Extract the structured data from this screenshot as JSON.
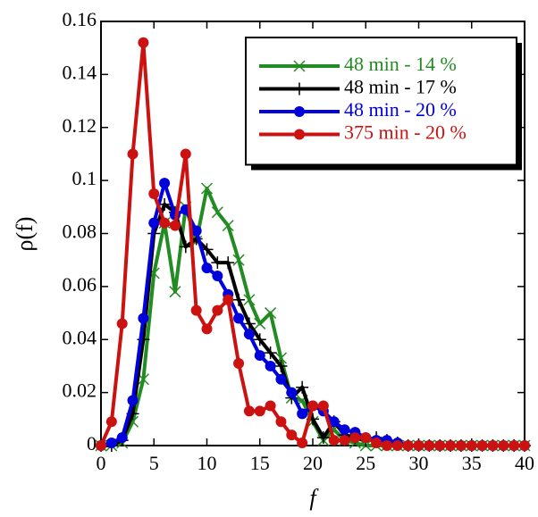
{
  "chart_data": {
    "type": "line",
    "xlabel": "f",
    "ylabel": "ρ(f)",
    "x": [
      0,
      1,
      2,
      3,
      4,
      5,
      6,
      7,
      8,
      9,
      10,
      11,
      12,
      13,
      14,
      15,
      16,
      17,
      18,
      19,
      20,
      21,
      22,
      23,
      24,
      25,
      26,
      27,
      28,
      29,
      30,
      31,
      32,
      33,
      34,
      35,
      36,
      37,
      38,
      39,
      40
    ],
    "series": [
      {
        "name": "48 min - 14 %",
        "color": "#228b22",
        "marker": "x",
        "values": [
          0,
          0,
          0.001,
          0.009,
          0.025,
          0.065,
          0.084,
          0.058,
          0.09,
          0.077,
          0.097,
          0.088,
          0.083,
          0.07,
          0.055,
          0.046,
          0.05,
          0.033,
          0.018,
          0.017,
          0.009,
          0.002,
          0.006,
          0.002,
          0.001,
          0,
          0,
          0,
          0,
          0,
          0,
          0,
          0,
          0,
          0,
          0,
          0,
          0,
          0,
          0,
          0
        ]
      },
      {
        "name": "48 min - 17 %",
        "color": "#000000",
        "marker": "+",
        "values": [
          0,
          0,
          0.002,
          0.012,
          0.04,
          0.08,
          0.091,
          0.088,
          0.075,
          0.078,
          0.074,
          0.069,
          0.069,
          0.055,
          0.046,
          0.04,
          0.035,
          0.03,
          0.018,
          0.022,
          0.01,
          0.003,
          0.009,
          0.004,
          0.003,
          0.002,
          0.003,
          0.002,
          0.001,
          0,
          0,
          0,
          0,
          0,
          0,
          0,
          0,
          0,
          0,
          0,
          0
        ]
      },
      {
        "name": "48 min - 20 %",
        "color": "#0000dd",
        "marker": "circle",
        "values": [
          0,
          0.001,
          0.003,
          0.017,
          0.048,
          0.084,
          0.099,
          0.087,
          0.089,
          0.081,
          0.067,
          0.064,
          0.057,
          0.048,
          0.042,
          0.034,
          0.03,
          0.025,
          0.02,
          0.012,
          0.015,
          0.013,
          0.009,
          0.006,
          0.005,
          0.003,
          0.002,
          0.002,
          0.001,
          0,
          0,
          0,
          0,
          0,
          0,
          0,
          0,
          0,
          0,
          0,
          0
        ]
      },
      {
        "name": "375 min - 20 %",
        "color": "#cc1111",
        "marker": "circle",
        "values": [
          0,
          0.009,
          0.046,
          0.11,
          0.152,
          0.095,
          0.084,
          0.083,
          0.11,
          0.051,
          0.044,
          0.051,
          0.055,
          0.031,
          0.013,
          0.013,
          0.015,
          0.009,
          0.004,
          0.001,
          0.015,
          0.015,
          0.002,
          0.002,
          0.003,
          0.003,
          0.001,
          0,
          0,
          0,
          0,
          0,
          0,
          0,
          0,
          0,
          0,
          0,
          0,
          0,
          0
        ]
      }
    ],
    "xlim": [
      0,
      40
    ],
    "xticks": [
      0,
      5,
      10,
      15,
      20,
      25,
      30,
      35,
      40
    ],
    "ylim": [
      0,
      0.16
    ],
    "yticks": [
      0,
      0.02,
      0.04,
      0.06,
      0.08,
      0.1,
      0.12,
      0.14,
      0.16
    ],
    "legend": "upper right"
  }
}
